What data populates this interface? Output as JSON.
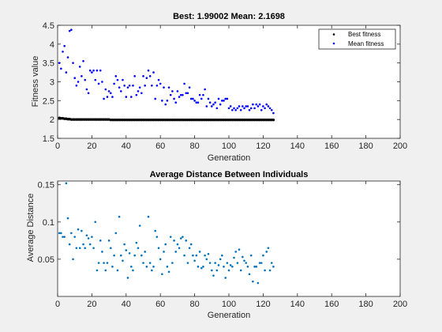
{
  "chart_data": [
    {
      "type": "scatter",
      "title": "Best: 1.99002 Mean: 2.1698",
      "xlabel": "Generation",
      "ylabel": "Fitness value",
      "xlim": [
        0,
        200
      ],
      "ylim": [
        1.5,
        4.5
      ],
      "xticks": [
        "0",
        "20",
        "40",
        "60",
        "80",
        "100",
        "120",
        "140",
        "160",
        "180",
        "200"
      ],
      "yticks": [
        "1.5",
        "2",
        "2.5",
        "3",
        "3.5",
        "4",
        "4.5"
      ],
      "legend_position": "top-right",
      "grid": false,
      "series": [
        {
          "name": "Best fitness",
          "color": "#000000",
          "x": [
            1,
            2,
            3,
            4,
            5,
            6,
            7,
            8,
            9,
            10,
            11,
            12,
            13,
            14,
            15,
            16,
            17,
            18,
            19,
            20,
            21,
            22,
            23,
            24,
            25,
            26,
            27,
            28,
            29,
            30,
            31,
            32,
            33,
            34,
            35,
            36,
            37,
            38,
            39,
            40,
            41,
            42,
            43,
            44,
            45,
            46,
            47,
            48,
            49,
            50,
            51,
            52,
            53,
            54,
            55,
            56,
            57,
            58,
            59,
            60,
            61,
            62,
            63,
            64,
            65,
            66,
            67,
            68,
            69,
            70,
            71,
            72,
            73,
            74,
            75,
            76,
            77,
            78,
            79,
            80,
            81,
            82,
            83,
            84,
            85,
            86,
            87,
            88,
            89,
            90,
            91,
            92,
            93,
            94,
            95,
            96,
            97,
            98,
            99,
            100,
            101,
            102,
            103,
            104,
            105,
            106,
            107,
            108,
            109,
            110,
            111,
            112,
            113,
            114,
            115,
            116,
            117,
            118,
            119,
            120,
            121,
            122,
            123,
            124,
            125,
            126
          ],
          "y": [
            2.04,
            2.03,
            2.03,
            2.02,
            2.02,
            2.01,
            2.01,
            2.0,
            2.0,
            2.0,
            2.0,
            2.0,
            2.0,
            2.0,
            2.0,
            2.0,
            2.0,
            2.0,
            2.0,
            2.0,
            2.0,
            2.0,
            2.0,
            2.0,
            2.0,
            2.0,
            2.0,
            2.0,
            2.0,
            2.0,
            1.99,
            1.99,
            1.99,
            1.99,
            1.99,
            1.99,
            1.99,
            1.99,
            1.99,
            1.99,
            1.99,
            1.99,
            1.99,
            1.99,
            1.99,
            1.99,
            1.99,
            1.99,
            1.99,
            1.99,
            1.99,
            1.99,
            1.99,
            1.99,
            1.99,
            1.99,
            1.99,
            1.99,
            1.99,
            1.99,
            1.99,
            1.99,
            1.99,
            1.99,
            1.99,
            1.99,
            1.99,
            1.99,
            1.99,
            1.99,
            1.99,
            1.99,
            1.99,
            1.99,
            1.99,
            1.99,
            1.99,
            1.99,
            1.99,
            1.99,
            1.99,
            1.99,
            1.99,
            1.99,
            1.99,
            1.99,
            1.99,
            1.99,
            1.99,
            1.99,
            1.99,
            1.99,
            1.99,
            1.99,
            1.99,
            1.99,
            1.99,
            1.99,
            1.99,
            1.99,
            1.99,
            1.99,
            1.99,
            1.99,
            1.99,
            1.99,
            1.99,
            1.99,
            1.99,
            1.99,
            1.99,
            1.99,
            1.99,
            1.99,
            1.99,
            1.99,
            1.99,
            1.99,
            1.99,
            1.99,
            1.99,
            1.99,
            1.99,
            1.99,
            1.99,
            1.99
          ]
        },
        {
          "name": "Mean fitness",
          "color": "#0000ff",
          "x": [
            1,
            2,
            3,
            4,
            5,
            6,
            7,
            8,
            9,
            10,
            11,
            12,
            13,
            14,
            15,
            16,
            17,
            18,
            19,
            20,
            21,
            22,
            23,
            24,
            25,
            26,
            27,
            28,
            29,
            30,
            31,
            32,
            33,
            34,
            35,
            36,
            37,
            38,
            39,
            40,
            41,
            42,
            43,
            44,
            45,
            46,
            47,
            48,
            49,
            50,
            51,
            52,
            53,
            54,
            55,
            56,
            57,
            58,
            59,
            60,
            61,
            62,
            63,
            64,
            65,
            66,
            67,
            68,
            69,
            70,
            71,
            72,
            73,
            74,
            75,
            76,
            77,
            78,
            79,
            80,
            81,
            82,
            83,
            84,
            85,
            86,
            87,
            88,
            89,
            90,
            91,
            92,
            93,
            94,
            95,
            96,
            97,
            98,
            99,
            100,
            101,
            102,
            103,
            104,
            105,
            106,
            107,
            108,
            109,
            110,
            111,
            112,
            113,
            114,
            115,
            116,
            117,
            118,
            119,
            120,
            121,
            122,
            123,
            124,
            125,
            126
          ],
          "y": [
            3.5,
            3.35,
            3.8,
            3.95,
            3.25,
            3.65,
            4.35,
            4.38,
            3.5,
            3.1,
            2.9,
            3.0,
            3.4,
            3.15,
            3.55,
            3.05,
            2.8,
            2.7,
            3.3,
            3.25,
            3.3,
            3.05,
            3.3,
            2.95,
            3.3,
            3.0,
            2.55,
            2.8,
            2.6,
            2.75,
            2.7,
            2.6,
            2.95,
            3.15,
            3.05,
            2.85,
            2.75,
            3.05,
            2.9,
            2.6,
            2.85,
            2.9,
            2.6,
            2.9,
            3.15,
            2.65,
            2.75,
            2.85,
            2.7,
            3.15,
            2.9,
            3.1,
            3.3,
            3.15,
            2.9,
            3.25,
            2.55,
            2.9,
            3.05,
            2.95,
            2.5,
            2.85,
            2.4,
            2.5,
            2.85,
            2.65,
            2.75,
            2.55,
            2.45,
            2.75,
            2.6,
            2.65,
            2.65,
            2.95,
            2.7,
            2.7,
            2.85,
            2.55,
            2.55,
            2.5,
            2.45,
            2.45,
            2.65,
            2.55,
            2.65,
            2.8,
            2.35,
            2.55,
            2.45,
            2.35,
            2.4,
            2.45,
            2.3,
            2.55,
            2.4,
            2.5,
            2.5,
            2.55,
            2.55,
            2.3,
            2.35,
            2.25,
            2.3,
            2.25,
            2.3,
            2.35,
            2.25,
            2.35,
            2.3,
            2.35,
            2.35,
            2.25,
            2.3,
            2.4,
            2.3,
            2.4,
            2.35,
            2.4,
            2.25,
            2.35,
            2.3,
            2.4,
            2.35,
            2.3,
            2.25,
            2.17
          ]
        }
      ]
    },
    {
      "type": "scatter",
      "title": "Average Distance Between Individuals",
      "xlabel": "Generation",
      "ylabel": "Average Distance",
      "xlim": [
        0,
        200
      ],
      "ylim": [
        0,
        0.155
      ],
      "xticks": [
        "0",
        "20",
        "40",
        "60",
        "80",
        "100",
        "120",
        "140",
        "160",
        "180",
        "200"
      ],
      "yticks": [
        "0.05",
        "0.1",
        "0.15"
      ],
      "grid": false,
      "series": [
        {
          "color": "#0072bd",
          "x": [
            1,
            2,
            3,
            4,
            5,
            6,
            7,
            8,
            9,
            10,
            11,
            12,
            13,
            14,
            15,
            16,
            17,
            18,
            19,
            20,
            21,
            22,
            23,
            24,
            25,
            26,
            27,
            28,
            29,
            30,
            31,
            32,
            33,
            34,
            35,
            36,
            37,
            38,
            39,
            40,
            41,
            42,
            43,
            44,
            45,
            46,
            47,
            48,
            49,
            50,
            51,
            52,
            53,
            54,
            55,
            56,
            57,
            58,
            59,
            60,
            61,
            62,
            63,
            64,
            65,
            66,
            67,
            68,
            69,
            70,
            71,
            72,
            73,
            74,
            75,
            76,
            77,
            78,
            79,
            80,
            81,
            82,
            83,
            84,
            85,
            86,
            87,
            88,
            89,
            90,
            91,
            92,
            93,
            94,
            95,
            96,
            97,
            98,
            99,
            100,
            101,
            102,
            103,
            104,
            105,
            106,
            107,
            108,
            109,
            110,
            111,
            112,
            113,
            114,
            115,
            116,
            117,
            118,
            119,
            120,
            121,
            122,
            123,
            124,
            125,
            126
          ],
          "y": [
            0.085,
            0.085,
            0.08,
            0.08,
            0.152,
            0.105,
            0.07,
            0.085,
            0.05,
            0.08,
            0.065,
            0.09,
            0.065,
            0.088,
            0.07,
            0.065,
            0.082,
            0.078,
            0.07,
            0.08,
            0.065,
            0.1,
            0.035,
            0.045,
            0.075,
            0.06,
            0.045,
            0.035,
            0.045,
            0.075,
            0.065,
            0.04,
            0.055,
            0.085,
            0.035,
            0.107,
            0.055,
            0.048,
            0.07,
            0.062,
            0.025,
            0.058,
            0.04,
            0.035,
            0.055,
            0.072,
            0.065,
            0.095,
            0.055,
            0.045,
            0.06,
            0.04,
            0.107,
            0.045,
            0.035,
            0.04,
            0.088,
            0.08,
            0.065,
            0.05,
            0.03,
            0.06,
            0.07,
            0.04,
            0.033,
            0.08,
            0.045,
            0.075,
            0.06,
            0.07,
            0.065,
            0.078,
            0.08,
            0.055,
            0.075,
            0.045,
            0.065,
            0.07,
            0.055,
            0.048,
            0.055,
            0.04,
            0.06,
            0.038,
            0.04,
            0.055,
            0.05,
            0.057,
            0.045,
            0.035,
            0.028,
            0.045,
            0.035,
            0.042,
            0.05,
            0.055,
            0.04,
            0.025,
            0.045,
            0.035,
            0.042,
            0.04,
            0.052,
            0.06,
            0.045,
            0.063,
            0.035,
            0.053,
            0.048,
            0.045,
            0.04,
            0.03,
            0.055,
            0.02,
            0.04,
            0.04,
            0.018,
            0.045,
            0.045,
            0.055,
            0.035,
            0.06,
            0.065,
            0.035,
            0.045,
            0.04
          ]
        }
      ]
    }
  ]
}
